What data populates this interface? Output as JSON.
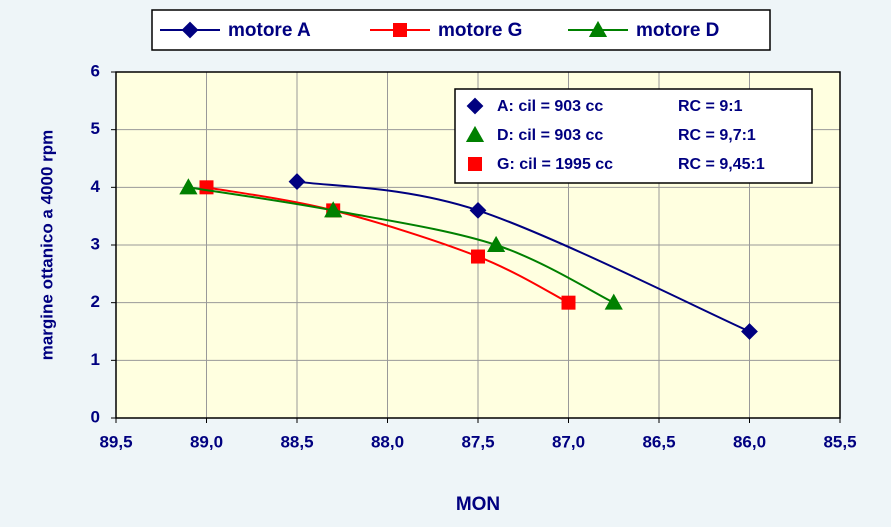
{
  "chart_data": {
    "type": "line",
    "x_label": "MON",
    "y_label": "margine ottanico a 4000 rpm",
    "xlim": [
      89.5,
      85.5
    ],
    "xticks": [
      {
        "value": 89.5,
        "label": "89,5"
      },
      {
        "value": 89.0,
        "label": "89,0"
      },
      {
        "value": 88.5,
        "label": "88,5"
      },
      {
        "value": 88.0,
        "label": "88,0"
      },
      {
        "value": 87.5,
        "label": "87,5"
      },
      {
        "value": 87.0,
        "label": "87,0"
      },
      {
        "value": 86.5,
        "label": "86,5"
      },
      {
        "value": 86.0,
        "label": "86,0"
      },
      {
        "value": 85.5,
        "label": "85,5"
      }
    ],
    "ylim": [
      0,
      6
    ],
    "yticks": [
      0,
      1,
      2,
      3,
      4,
      5,
      6
    ],
    "grid": true,
    "smooth": true,
    "series": [
      {
        "name": "motore A",
        "color": "#000080",
        "marker": "diamond",
        "x": [
          88.5,
          87.5,
          86.0
        ],
        "values": [
          4.1,
          3.6,
          1.5
        ]
      },
      {
        "name": "motore G",
        "color": "#ff0000",
        "marker": "square",
        "x": [
          89.0,
          88.3,
          87.5,
          87.0
        ],
        "values": [
          4.0,
          3.6,
          2.8,
          2.0
        ]
      },
      {
        "name": "motore D",
        "color": "#008000",
        "marker": "triangle",
        "x": [
          89.1,
          88.3,
          87.4,
          86.75
        ],
        "values": [
          4.0,
          3.6,
          3.0,
          2.0
        ]
      }
    ],
    "annotations": [
      {
        "marker": "diamond",
        "color": "#000080",
        "text": "A:  cil = 903 cc",
        "ratio": "RC = 9:1"
      },
      {
        "marker": "triangle",
        "color": "#008000",
        "text": "D:  cil = 903 cc",
        "ratio": "RC = 9,7:1"
      },
      {
        "marker": "square",
        "color": "#ff0000",
        "text": "G:  cil = 1995 cc",
        "ratio": "RC = 9,45:1"
      }
    ]
  }
}
